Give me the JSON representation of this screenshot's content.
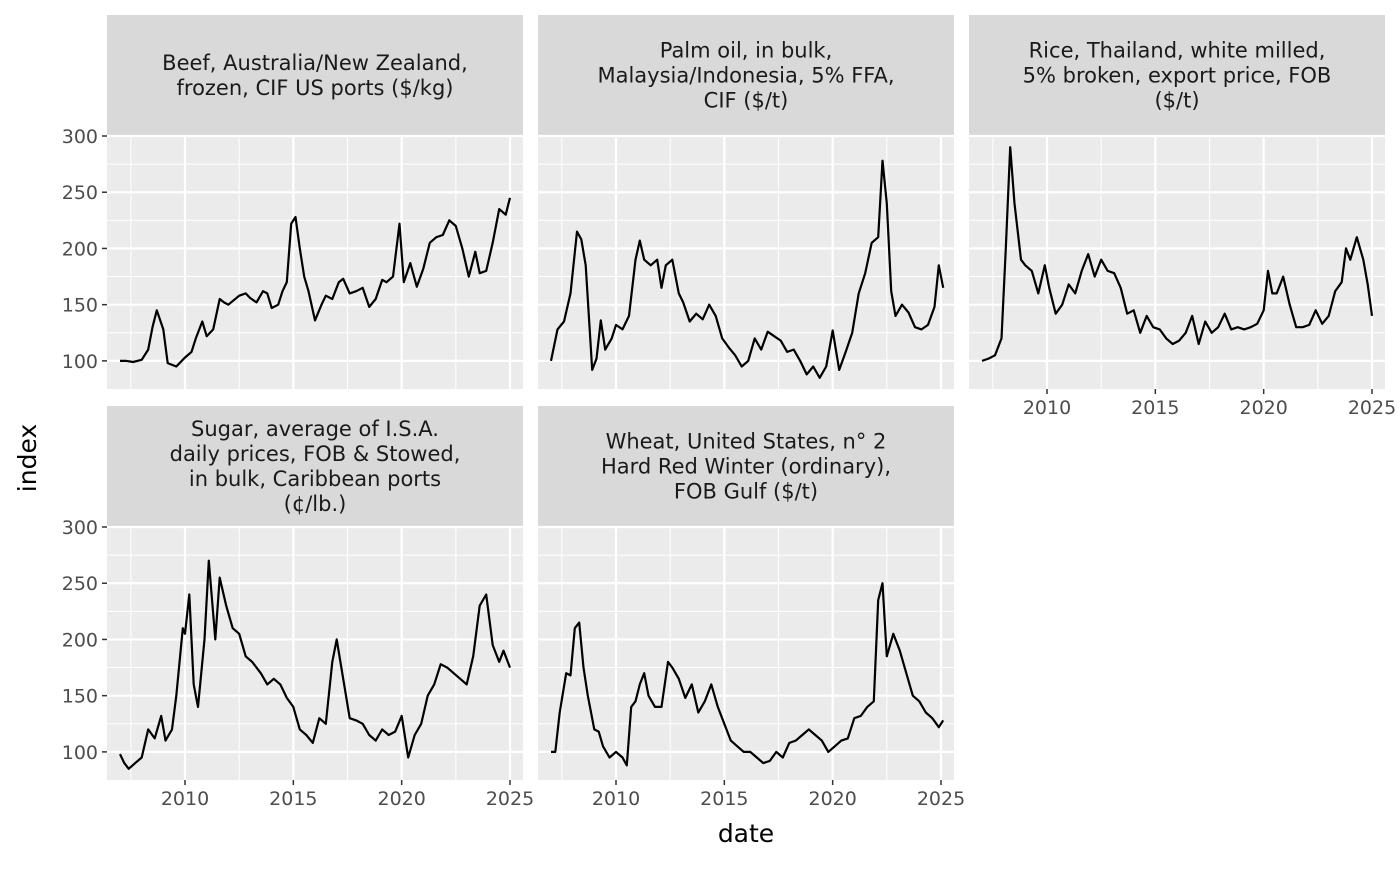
{
  "chart_data": {
    "type": "line",
    "xlabel": "date",
    "ylabel": "index",
    "xlim": [
      2006.4,
      2025.6
    ],
    "ylim": [
      75,
      300
    ],
    "x_ticks": [
      2010,
      2015,
      2020,
      2025
    ],
    "y_ticks": [
      100,
      150,
      200,
      250,
      300
    ],
    "x_tick_labels": [
      "2010",
      "2015",
      "2020",
      "2025"
    ],
    "y_tick_labels": [
      "100",
      "150",
      "200",
      "250",
      "300"
    ],
    "grid": true,
    "legend": "none",
    "line_color": "#000000",
    "panel_background": "#ebebeb",
    "strip_background": "#d9d9d9",
    "facets": [
      {
        "title_lines": [
          "Beef, Australia/New Zealand,",
          "frozen, CIF US ports ($/kg)"
        ],
        "x": [
          2007.0,
          2007.3,
          2007.6,
          2008.0,
          2008.3,
          2008.5,
          2008.7,
          2009.0,
          2009.2,
          2009.6,
          2010.0,
          2010.3,
          2010.5,
          2010.8,
          2011.0,
          2011.3,
          2011.6,
          2011.8,
          2012.0,
          2012.5,
          2012.8,
          2013.0,
          2013.3,
          2013.6,
          2013.8,
          2014.0,
          2014.3,
          2014.5,
          2014.7,
          2014.9,
          2015.1,
          2015.3,
          2015.5,
          2015.7,
          2016.0,
          2016.3,
          2016.5,
          2016.8,
          2017.1,
          2017.3,
          2017.6,
          2017.9,
          2018.2,
          2018.5,
          2018.8,
          2019.1,
          2019.3,
          2019.6,
          2019.9,
          2020.1,
          2020.4,
          2020.7,
          2021.0,
          2021.3,
          2021.6,
          2021.9,
          2022.2,
          2022.5,
          2022.8,
          2023.1,
          2023.4,
          2023.6,
          2023.9,
          2024.2,
          2024.5,
          2024.8,
          2025.0
        ],
        "y": [
          100,
          100,
          99,
          101,
          110,
          130,
          145,
          128,
          98,
          95,
          103,
          108,
          120,
          135,
          122,
          128,
          155,
          152,
          150,
          158,
          160,
          156,
          152,
          162,
          160,
          147,
          150,
          162,
          170,
          222,
          228,
          200,
          175,
          162,
          136,
          150,
          158,
          155,
          170,
          173,
          160,
          162,
          165,
          148,
          155,
          172,
          170,
          175,
          222,
          170,
          187,
          166,
          182,
          205,
          210,
          212,
          225,
          220,
          200,
          175,
          197,
          178,
          180,
          205,
          235,
          230,
          245
        ]
      },
      {
        "title_lines": [
          "Palm oil, in bulk,",
          "Malaysia/Indonesia, 5% FFA,",
          "CIF ($/t)"
        ],
        "x": [
          2007.0,
          2007.3,
          2007.6,
          2007.9,
          2008.2,
          2008.4,
          2008.6,
          2008.9,
          2009.1,
          2009.3,
          2009.5,
          2009.8,
          2010.0,
          2010.3,
          2010.6,
          2010.9,
          2011.1,
          2011.3,
          2011.6,
          2011.9,
          2012.1,
          2012.3,
          2012.6,
          2012.9,
          2013.1,
          2013.4,
          2013.7,
          2014.0,
          2014.3,
          2014.6,
          2014.9,
          2015.2,
          2015.5,
          2015.8,
          2016.1,
          2016.4,
          2016.7,
          2017.0,
          2017.3,
          2017.6,
          2017.9,
          2018.2,
          2018.5,
          2018.8,
          2019.1,
          2019.4,
          2019.7,
          2020.0,
          2020.3,
          2020.6,
          2020.9,
          2021.2,
          2021.5,
          2021.8,
          2022.1,
          2022.3,
          2022.5,
          2022.7,
          2022.9,
          2023.2,
          2023.5,
          2023.8,
          2024.1,
          2024.4,
          2024.7,
          2024.9,
          2025.1
        ],
        "y": [
          100,
          128,
          135,
          160,
          215,
          208,
          185,
          92,
          102,
          136,
          110,
          120,
          132,
          128,
          140,
          190,
          207,
          190,
          185,
          190,
          165,
          185,
          190,
          160,
          152,
          135,
          142,
          137,
          150,
          140,
          120,
          112,
          105,
          95,
          100,
          120,
          110,
          126,
          122,
          118,
          108,
          110,
          100,
          88,
          95,
          85,
          95,
          127,
          92,
          108,
          125,
          160,
          178,
          205,
          210,
          278,
          240,
          162,
          140,
          150,
          143,
          130,
          128,
          132,
          148,
          185,
          165
        ]
      },
      {
        "title_lines": [
          "Rice, Thailand, white milled,",
          "5% broken, export price, FOB",
          "($/t)"
        ],
        "x": [
          2007.0,
          2007.3,
          2007.6,
          2007.9,
          2008.1,
          2008.3,
          2008.5,
          2008.8,
          2009.0,
          2009.3,
          2009.6,
          2009.9,
          2010.1,
          2010.4,
          2010.7,
          2011.0,
          2011.3,
          2011.6,
          2011.9,
          2012.2,
          2012.5,
          2012.8,
          2013.1,
          2013.4,
          2013.7,
          2014.0,
          2014.3,
          2014.6,
          2014.9,
          2015.2,
          2015.5,
          2015.8,
          2016.1,
          2016.4,
          2016.7,
          2017.0,
          2017.3,
          2017.6,
          2017.9,
          2018.2,
          2018.5,
          2018.8,
          2019.1,
          2019.4,
          2019.7,
          2020.0,
          2020.2,
          2020.4,
          2020.6,
          2020.9,
          2021.2,
          2021.5,
          2021.8,
          2022.1,
          2022.4,
          2022.7,
          2023.0,
          2023.3,
          2023.6,
          2023.8,
          2024.0,
          2024.3,
          2024.6,
          2024.8,
          2025.0
        ],
        "y": [
          100,
          102,
          105,
          120,
          200,
          290,
          240,
          190,
          185,
          180,
          160,
          185,
          165,
          142,
          150,
          168,
          160,
          180,
          195,
          175,
          190,
          180,
          178,
          165,
          142,
          145,
          125,
          140,
          130,
          128,
          120,
          115,
          118,
          125,
          140,
          115,
          135,
          125,
          130,
          142,
          128,
          130,
          128,
          130,
          133,
          145,
          180,
          160,
          160,
          175,
          150,
          130,
          130,
          132,
          145,
          133,
          140,
          162,
          170,
          200,
          190,
          210,
          190,
          168,
          140
        ]
      },
      {
        "title_lines": [
          "Sugar, average of I.S.A.",
          "daily prices, FOB & Stowed,",
          "in bulk, Caribbean ports",
          "(¢/lb.)"
        ],
        "x": [
          2007.0,
          2007.2,
          2007.4,
          2007.7,
          2008.0,
          2008.3,
          2008.6,
          2008.9,
          2009.1,
          2009.4,
          2009.6,
          2009.9,
          2010.0,
          2010.2,
          2010.4,
          2010.6,
          2010.9,
          2011.1,
          2011.4,
          2011.6,
          2011.9,
          2012.2,
          2012.5,
          2012.8,
          2013.1,
          2013.5,
          2013.8,
          2014.1,
          2014.4,
          2014.7,
          2015.0,
          2015.3,
          2015.6,
          2015.9,
          2016.2,
          2016.5,
          2016.8,
          2017.0,
          2017.3,
          2017.6,
          2017.9,
          2018.2,
          2018.5,
          2018.8,
          2019.1,
          2019.4,
          2019.7,
          2020.0,
          2020.3,
          2020.6,
          2020.9,
          2021.2,
          2021.5,
          2021.8,
          2022.1,
          2022.4,
          2022.7,
          2023.0,
          2023.3,
          2023.6,
          2023.9,
          2024.2,
          2024.5,
          2024.7,
          2025.0
        ],
        "y": [
          98,
          90,
          85,
          90,
          95,
          120,
          112,
          132,
          110,
          120,
          150,
          210,
          205,
          240,
          160,
          140,
          200,
          270,
          200,
          255,
          230,
          210,
          205,
          185,
          180,
          170,
          160,
          165,
          160,
          148,
          140,
          120,
          115,
          108,
          130,
          125,
          180,
          200,
          165,
          130,
          128,
          125,
          115,
          110,
          120,
          115,
          118,
          132,
          95,
          115,
          125,
          150,
          160,
          178,
          175,
          170,
          165,
          160,
          185,
          230,
          240,
          195,
          180,
          190,
          175
        ]
      },
      {
        "title_lines": [
          "Wheat, United States, n° 2",
          "Hard Red Winter (ordinary),",
          "FOB Gulf ($/t)"
        ],
        "x": [
          2007.0,
          2007.2,
          2007.4,
          2007.7,
          2007.9,
          2008.1,
          2008.3,
          2008.5,
          2008.7,
          2009.0,
          2009.2,
          2009.4,
          2009.7,
          2010.0,
          2010.3,
          2010.5,
          2010.7,
          2010.9,
          2011.1,
          2011.3,
          2011.5,
          2011.8,
          2012.1,
          2012.4,
          2012.6,
          2012.9,
          2013.2,
          2013.5,
          2013.8,
          2014.1,
          2014.4,
          2014.7,
          2015.0,
          2015.3,
          2015.6,
          2015.9,
          2016.2,
          2016.5,
          2016.8,
          2017.1,
          2017.4,
          2017.7,
          2018.0,
          2018.3,
          2018.6,
          2018.9,
          2019.2,
          2019.5,
          2019.8,
          2020.1,
          2020.4,
          2020.7,
          2021.0,
          2021.3,
          2021.6,
          2021.9,
          2022.1,
          2022.3,
          2022.5,
          2022.8,
          2023.1,
          2023.4,
          2023.7,
          2024.0,
          2024.3,
          2024.6,
          2024.9,
          2025.1
        ],
        "y": [
          100,
          100,
          135,
          170,
          168,
          210,
          215,
          175,
          150,
          120,
          118,
          105,
          95,
          100,
          95,
          88,
          140,
          145,
          160,
          170,
          150,
          140,
          140,
          180,
          175,
          165,
          148,
          160,
          135,
          145,
          160,
          140,
          125,
          110,
          105,
          100,
          100,
          95,
          90,
          92,
          100,
          95,
          108,
          110,
          115,
          120,
          115,
          110,
          100,
          105,
          110,
          112,
          130,
          132,
          140,
          145,
          235,
          250,
          185,
          205,
          190,
          170,
          150,
          145,
          135,
          130,
          122,
          128
        ]
      }
    ]
  }
}
